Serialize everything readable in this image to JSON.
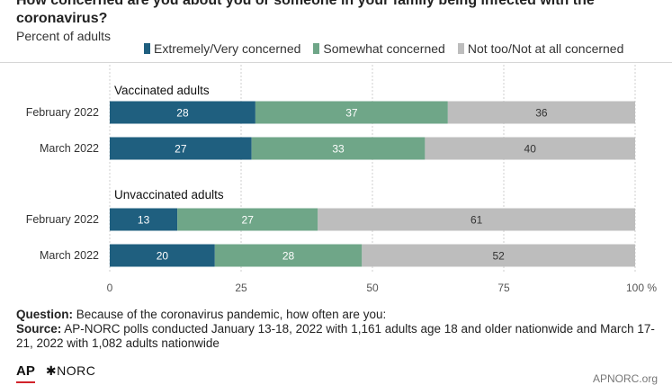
{
  "header": {
    "title": "How concerned are you about you or someone in your family being infected with the coronavirus?",
    "subtitle": "Percent of adults"
  },
  "colors": {
    "series": [
      "#1f5f7f",
      "#6fa688",
      "#bdbdbd"
    ],
    "bar_text_dark": "#ffffff",
    "bar_text_light": "#333333"
  },
  "chart_data": {
    "type": "bar",
    "orientation": "horizontal",
    "stacked": true,
    "series_names": [
      "Extremely/Very concerned",
      "Somewhat concerned",
      "Not too/Not at all concerned"
    ],
    "groups": [
      {
        "label": "Vaccinated adults",
        "rows": [
          {
            "category": "February 2022",
            "values": [
              28,
              37,
              36
            ]
          },
          {
            "category": "March 2022",
            "values": [
              27,
              33,
              40
            ]
          }
        ]
      },
      {
        "label": "Unvaccinated adults",
        "rows": [
          {
            "category": "February 2022",
            "values": [
              13,
              27,
              61
            ]
          },
          {
            "category": "March 2022",
            "values": [
              20,
              28,
              52
            ]
          }
        ]
      }
    ],
    "xlim": [
      0,
      100
    ],
    "xticks": [
      "0",
      "25",
      "50",
      "75",
      "100 %"
    ],
    "grid": true,
    "legend": "top"
  },
  "footnote": {
    "question_label": "Question:",
    "question_text": " Because of the coronavirus pandemic, how often are you:",
    "source_label": "Source:",
    "source_text": " AP-NORC polls conducted January 13-18, 2022 with 1,161 adults age 18 and older nationwide and March 17-21, 2022 with 1,082 adults nationwide"
  },
  "logos": {
    "ap": "AP",
    "norc": "NORC",
    "norc_mark": "✱"
  },
  "site": "APNORC.org"
}
